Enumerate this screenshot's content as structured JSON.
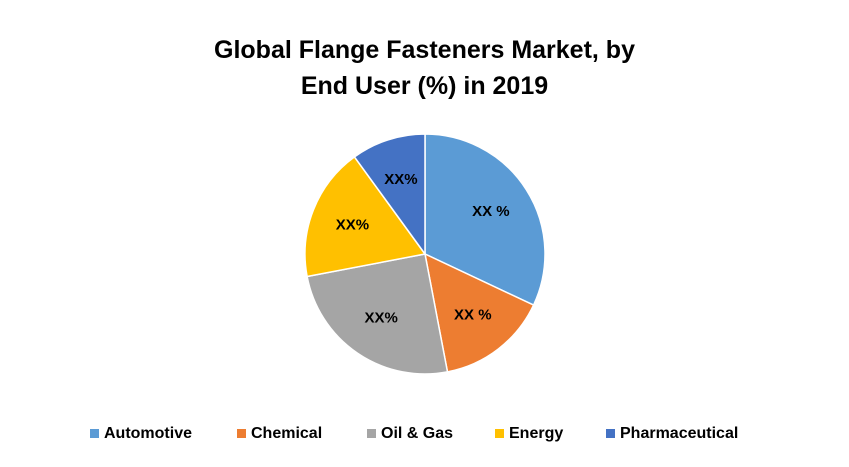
{
  "chart_data": {
    "type": "pie",
    "title": "Global Flange Fasteners Market, by End User (%) in 2019",
    "categories": [
      "Automotive",
      "Chemical",
      "Oil & Gas",
      "Energy",
      "Pharmaceutical"
    ],
    "values": [
      32,
      15,
      25,
      18,
      10
    ],
    "value_labels": [
      "XX %",
      "XX %",
      "XX%",
      "XX%",
      "XX%"
    ],
    "colors": [
      "#5b9bd5",
      "#ed7d31",
      "#a5a5a5",
      "#ffc000",
      "#4472c4"
    ],
    "legend": "bottom"
  }
}
